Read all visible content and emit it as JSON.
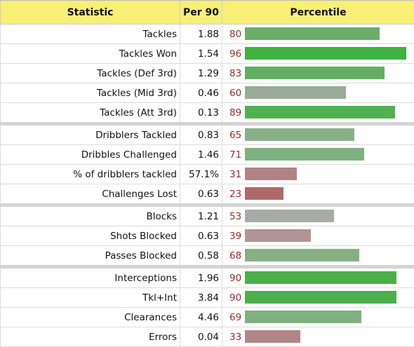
{
  "header": {
    "statistic": "Statistic",
    "per90": "Per 90",
    "percentile": "Percentile"
  },
  "groups": [
    [
      {
        "statistic": "Tackles",
        "per90": "1.88",
        "percentile": 80,
        "bar_color": "#6aae6a"
      },
      {
        "statistic": "Tackles Won",
        "per90": "1.54",
        "percentile": 96,
        "bar_color": "#3fb23f"
      },
      {
        "statistic": "Tackles (Def 3rd)",
        "per90": "1.29",
        "percentile": 83,
        "bar_color": "#62ae62"
      },
      {
        "statistic": "Tackles (Mid 3rd)",
        "per90": "0.46",
        "percentile": 60,
        "bar_color": "#98ac98"
      },
      {
        "statistic": "Tackles (Att 3rd)",
        "per90": "0.13",
        "percentile": 89,
        "bar_color": "#4fb24f"
      }
    ],
    [
      {
        "statistic": "Dribblers Tackled",
        "per90": "0.83",
        "percentile": 65,
        "bar_color": "#8ab08a"
      },
      {
        "statistic": "Dribbles Challenged",
        "per90": "1.46",
        "percentile": 71,
        "bar_color": "#7fb07f"
      },
      {
        "statistic": "% of dribblers tackled",
        "per90": "57.1%",
        "percentile": 31,
        "bar_color": "#b08484"
      },
      {
        "statistic": "Challenges Lost",
        "per90": "0.63",
        "percentile": 23,
        "bar_color": "#ae6a6a"
      }
    ],
    [
      {
        "statistic": "Blocks",
        "per90": "1.21",
        "percentile": 53,
        "bar_color": "#a8aaa8"
      },
      {
        "statistic": "Shots Blocked",
        "per90": "0.63",
        "percentile": 39,
        "bar_color": "#b29494"
      },
      {
        "statistic": "Passes Blocked",
        "per90": "0.58",
        "percentile": 68,
        "bar_color": "#85b085"
      }
    ],
    [
      {
        "statistic": "Interceptions",
        "per90": "1.96",
        "percentile": 90,
        "bar_color": "#4ab04a"
      },
      {
        "statistic": "Tkl+Int",
        "per90": "3.84",
        "percentile": 90,
        "bar_color": "#4ab04a"
      },
      {
        "statistic": "Clearances",
        "per90": "4.46",
        "percentile": 69,
        "bar_color": "#80b080"
      },
      {
        "statistic": "Errors",
        "per90": "0.04",
        "percentile": 33,
        "bar_color": "#b08686"
      }
    ]
  ]
}
